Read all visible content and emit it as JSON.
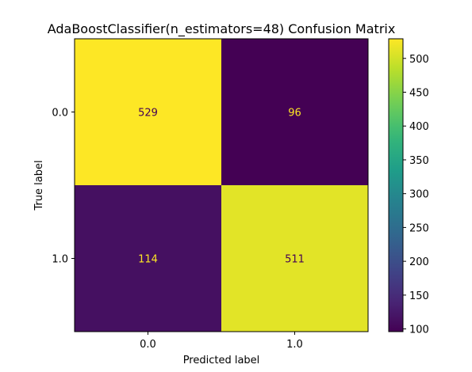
{
  "chart_data": {
    "type": "heatmap",
    "title": "AdaBoostClassifier(n_estimators=48) Confusion Matrix",
    "xlabel": "Predicted label",
    "ylabel": "True label",
    "x_tick_labels": [
      "0.0",
      "1.0"
    ],
    "y_tick_labels": [
      "0.0",
      "1.0"
    ],
    "values": [
      [
        529,
        96
      ],
      [
        114,
        511
      ]
    ],
    "colormap": "viridis",
    "colorbar": {
      "vmin": 96,
      "vmax": 529,
      "ticks": [
        100,
        150,
        200,
        250,
        300,
        350,
        400,
        450,
        500
      ]
    },
    "cell_text_colors": {
      "on_dark": "#fde725",
      "on_bright": "#440154"
    }
  }
}
